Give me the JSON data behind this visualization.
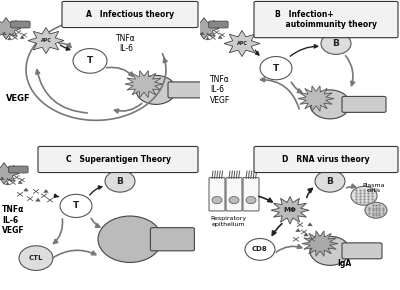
{
  "bg_color": "#ffffff",
  "gray1": "#aaaaaa",
  "gray2": "#bbbbbb",
  "gray3": "#cccccc",
  "gray4": "#dddddd",
  "dark": "#333333",
  "mid": "#666666",
  "arrow_gray": "#777777",
  "panel_A_title": "A   Infectious theory",
  "panel_B_title": "B   Infection+\n    autoimmunity theory",
  "panel_C_title": "C   Superantigen Theory",
  "panel_D_title": "D   RNA virus theory",
  "cytokines_A": "TNFα\nIL-6",
  "vegf_A": "VEGF",
  "cytokines_B": "TNFα\nIL-6\nVEGF",
  "cytokines_C": "TNFα\nIL-6\nVEGF",
  "label_CTL": "CTL",
  "label_T": "T",
  "label_B": "B",
  "label_CD8": "CD8",
  "label_MF": "MΦ",
  "label_IgA": "IgA",
  "label_plasma": "Plasma\ncells",
  "label_resp": "Respiratory\nepithelium",
  "label_APC": "APC"
}
